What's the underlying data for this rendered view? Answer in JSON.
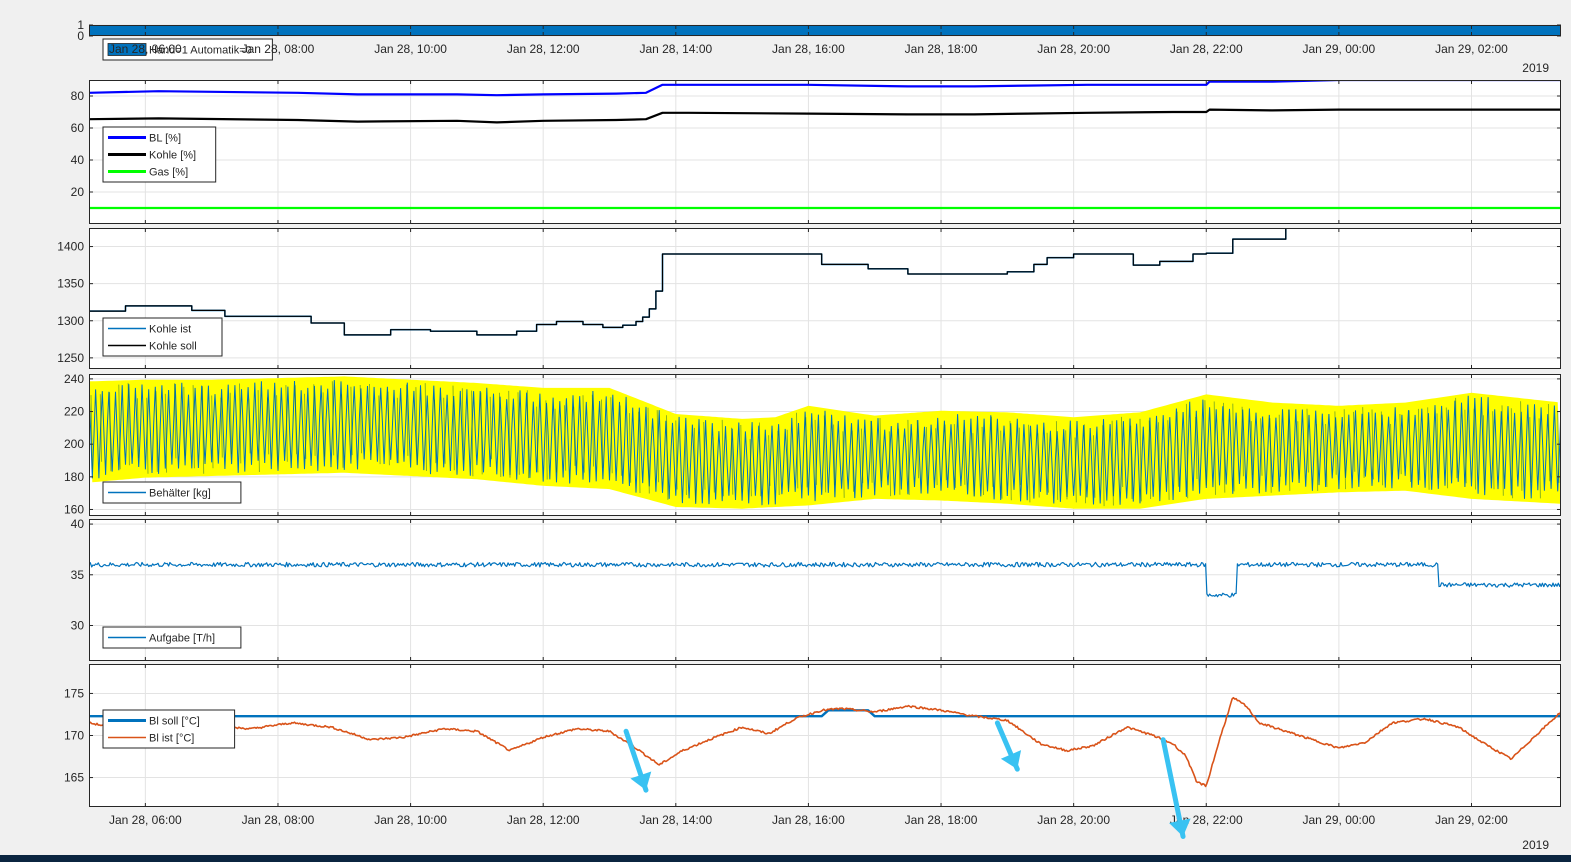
{
  "figure": {
    "background": "#f0f0f0",
    "year_label": "2019",
    "x_ticks": [
      "Jan 28, 06:00",
      "Jan 28, 08:00",
      "Jan 28, 10:00",
      "Jan 28, 12:00",
      "Jan 28, 14:00",
      "Jan 28, 16:00",
      "Jan 28, 18:00",
      "Jan 28, 20:00",
      "Jan 28, 22:00",
      "Jan 29, 00:00",
      "Jan 29, 02:00"
    ],
    "x_tick_hours": [
      6,
      8,
      10,
      12,
      14,
      16,
      18,
      20,
      22,
      24,
      26
    ],
    "x_range_hours": [
      5.15,
      27.35
    ],
    "arrow_color": "#39c2f2",
    "arrows": [
      {
        "name": "annotation-arrow-1",
        "from_hour": 13.25,
        "from_value": 170.5,
        "to_hour": 13.55,
        "to_value": 163.5
      },
      {
        "name": "annotation-arrow-2",
        "from_hour": 18.85,
        "from_value": 171.5,
        "to_hour": 19.15,
        "to_value": 166.0
      },
      {
        "name": "annotation-arrow-3",
        "from_hour": 21.35,
        "from_value": 169.5,
        "to_hour": 21.65,
        "to_value": 158.0
      }
    ]
  },
  "chart_data": [
    {
      "name": "panel-mode",
      "type": "bar",
      "yticks": [
        0,
        1
      ],
      "ylim": [
        0,
        1
      ],
      "legend": [
        {
          "label": "Hand=1 Automatik=0",
          "color": "#0072bd",
          "kind": "patch"
        }
      ],
      "series": [
        {
          "name": "Hand=1 Automatik=0",
          "color": "#0072bd",
          "x": [
            5.15,
            27.35
          ],
          "y": [
            1,
            1
          ]
        }
      ]
    },
    {
      "name": "panel-load",
      "type": "line",
      "yticks": [
        20,
        40,
        60,
        80
      ],
      "ylim": [
        0,
        90
      ],
      "legend": [
        {
          "label": "BL [%]",
          "color": "#0000ff"
        },
        {
          "label": "Kohle [%]",
          "color": "#000000"
        },
        {
          "label": "Gas [%]",
          "color": "#00ff00"
        }
      ],
      "series": [
        {
          "name": "BL [%]",
          "color": "#0000ff",
          "width": 2.2,
          "x": [
            5.15,
            6.2,
            8.3,
            9.2,
            10.7,
            11.3,
            12.0,
            13.1,
            13.55,
            13.8,
            14.2,
            16.0,
            17.5,
            18.5,
            19.3,
            20.2,
            21.5,
            22.0,
            22.05,
            23.0,
            24.0,
            27.35
          ],
          "y": [
            82,
            83,
            82,
            81,
            81,
            80.5,
            81,
            81.5,
            82,
            87,
            87,
            87,
            86,
            86,
            86.5,
            87,
            87,
            87,
            89,
            89,
            90,
            90
          ]
        },
        {
          "name": "Kohle [%]",
          "color": "#000000",
          "width": 2.2,
          "x": [
            5.15,
            6.2,
            8.3,
            9.2,
            10.7,
            11.3,
            12.0,
            13.1,
            13.55,
            13.8,
            14.2,
            16.0,
            17.5,
            18.5,
            19.3,
            20.2,
            21.5,
            22.0,
            22.05,
            23.0,
            24.0,
            27.35
          ],
          "y": [
            65.5,
            66,
            65,
            64,
            64.5,
            63.5,
            64.5,
            65,
            65.5,
            69.5,
            69.5,
            69,
            68.5,
            68.5,
            69,
            69.5,
            70,
            70,
            71.5,
            71,
            71.5,
            71.5
          ]
        },
        {
          "name": "Gas [%]",
          "color": "#00ff00",
          "width": 2.2,
          "x": [
            5.15,
            27.35
          ],
          "y": [
            10,
            10
          ]
        }
      ]
    },
    {
      "name": "panel-coal",
      "type": "line",
      "yticks": [
        1250,
        1300,
        1350,
        1400
      ],
      "ylim": [
        1235,
        1425
      ],
      "legend": [
        {
          "label": "Kohle ist",
          "color": "#0072bd"
        },
        {
          "label": "Kohle soll",
          "color": "#000000"
        }
      ],
      "series": [
        {
          "name": "Kohle ist",
          "color": "#0072bd",
          "width": 1.6,
          "step": true,
          "x": [
            5.15,
            5.7,
            6.7,
            7.2,
            8.5,
            9.0,
            9.7,
            10.3,
            11.0,
            11.6,
            11.9,
            12.2,
            12.6,
            12.9,
            13.2,
            13.4,
            13.5,
            13.6,
            13.7,
            13.8,
            15.2,
            16.2,
            16.9,
            17.5,
            18.4,
            19.0,
            19.4,
            19.6,
            20.0,
            20.5,
            20.9,
            21.3,
            21.8,
            22.0,
            22.4,
            23.2,
            23.6
          ],
          "y": [
            1313,
            1320,
            1314,
            1306,
            1297,
            1281,
            1288,
            1286,
            1281,
            1286,
            1295,
            1299,
            1295,
            1291,
            1294,
            1299,
            1305,
            1316,
            1340,
            1390,
            1390,
            1376,
            1370,
            1363,
            1363,
            1366,
            1376,
            1385,
            1390,
            1390,
            1375,
            1380,
            1390,
            1391,
            1410,
            1425,
            1425
          ]
        },
        {
          "name": "Kohle soll",
          "color": "#000000",
          "width": 1.2,
          "step": true,
          "x": [
            5.15,
            5.7,
            6.7,
            7.2,
            8.5,
            9.0,
            9.7,
            10.3,
            11.0,
            11.6,
            11.9,
            12.2,
            12.6,
            12.9,
            13.2,
            13.4,
            13.5,
            13.6,
            13.7,
            13.8,
            15.2,
            16.2,
            16.9,
            17.5,
            18.4,
            19.0,
            19.4,
            19.6,
            20.0,
            20.5,
            20.9,
            21.3,
            21.8,
            22.0,
            22.4,
            23.2,
            23.6
          ],
          "y": [
            1313,
            1320,
            1314,
            1306,
            1297,
            1281,
            1288,
            1286,
            1281,
            1286,
            1295,
            1299,
            1295,
            1291,
            1294,
            1299,
            1305,
            1316,
            1340,
            1390,
            1390,
            1376,
            1370,
            1363,
            1363,
            1366,
            1376,
            1385,
            1390,
            1390,
            1375,
            1380,
            1390,
            1391,
            1410,
            1425,
            1425
          ]
        }
      ]
    },
    {
      "name": "panel-bin",
      "type": "line",
      "yticks": [
        160,
        180,
        200,
        220,
        240
      ],
      "ylim": [
        156,
        243
      ],
      "legend": [
        {
          "label": "Behälter [kg]",
          "color": "#0072bd"
        }
      ],
      "series": [
        {
          "name": "Behälter [kg]",
          "color": "#0072bd",
          "width": 1,
          "oscillation": true,
          "period_hours": 0.1,
          "x": [
            5.15,
            6.0,
            7.0,
            8.0,
            9.0,
            10.0,
            11.0,
            12.0,
            13.0,
            14.0,
            15.0,
            15.5,
            16.0,
            17.0,
            18.0,
            19.0,
            20.0,
            21.0,
            22.0,
            23.0,
            24.0,
            25.0,
            26.0,
            27.35
          ],
          "upper": [
            237,
            238,
            238,
            239,
            240,
            238,
            236,
            233,
            233,
            217,
            214,
            215,
            222,
            216,
            219,
            218,
            215,
            218,
            229,
            224,
            222,
            224,
            230,
            224
          ],
          "lower": [
            178,
            181,
            182,
            183,
            184,
            182,
            180,
            176,
            174,
            163,
            162,
            163,
            164,
            168,
            167,
            165,
            162,
            162,
            168,
            170,
            172,
            173,
            168,
            165
          ]
        }
      ],
      "envelope": {
        "color": "#ffff00",
        "x": [
          5.15,
          6.0,
          7.0,
          8.0,
          9.0,
          10.0,
          11.0,
          12.0,
          13.0,
          14.0,
          15.0,
          15.5,
          16.0,
          17.0,
          18.0,
          19.0,
          20.0,
          21.0,
          22.0,
          23.0,
          24.0,
          25.0,
          26.0,
          27.35
        ],
        "upper": [
          237,
          238,
          238,
          239,
          240,
          238,
          236,
          233,
          233,
          217,
          214,
          215,
          222,
          216,
          219,
          218,
          215,
          218,
          229,
          224,
          222,
          224,
          230,
          224
        ],
        "lower": [
          178,
          181,
          182,
          183,
          184,
          182,
          180,
          176,
          174,
          163,
          162,
          163,
          164,
          168,
          167,
          165,
          162,
          162,
          168,
          170,
          172,
          173,
          168,
          165
        ]
      }
    },
    {
      "name": "panel-feed",
      "type": "line",
      "yticks": [
        30,
        35,
        40
      ],
      "ylim": [
        26.5,
        40.5
      ],
      "legend": [
        {
          "label": "Aufgabe [T/h]",
          "color": "#0072bd"
        }
      ],
      "series": [
        {
          "name": "Aufgabe [T/h]",
          "color": "#0072bd",
          "width": 1.2,
          "noise": 0.22,
          "step": true,
          "x": [
            5.15,
            21.9,
            22.0,
            22.3,
            22.45,
            25.4,
            25.5,
            27.35
          ],
          "y": [
            36,
            36,
            33,
            33,
            36,
            36,
            34,
            34
          ]
        }
      ]
    },
    {
      "name": "panel-temperature",
      "type": "line",
      "yticks": [
        165,
        170,
        175
      ],
      "ylim": [
        161.5,
        178.5
      ],
      "legend": [
        {
          "label": "Bl soll [°C]",
          "color": "#0072bd"
        },
        {
          "label": "Bl ist [°C]",
          "color": "#d95319"
        }
      ],
      "series": [
        {
          "name": "Bl soll [°C]",
          "color": "#0072bd",
          "width": 2.4,
          "x": [
            5.15,
            15.4,
            15.5,
            16.2,
            16.3,
            16.9,
            17.0,
            27.35
          ],
          "y": [
            172.3,
            172.3,
            172.3,
            172.3,
            173.0,
            173.0,
            172.3,
            172.3
          ]
        },
        {
          "name": "Bl ist [°C]",
          "color": "#d95319",
          "width": 1.6,
          "noise": 0.12,
          "x": [
            5.15,
            5.5,
            6.2,
            6.8,
            7.2,
            7.6,
            8.2,
            8.8,
            9.4,
            9.9,
            10.5,
            11.0,
            11.5,
            12.0,
            12.5,
            13.0,
            13.4,
            13.75,
            14.1,
            14.5,
            15.0,
            15.4,
            15.8,
            16.2,
            16.5,
            17.0,
            17.5,
            18.0,
            18.5,
            19.0,
            19.5,
            19.9,
            20.3,
            20.8,
            21.2,
            21.5,
            21.7,
            21.85,
            22.0,
            22.2,
            22.4,
            22.6,
            22.8,
            23.2,
            23.6,
            24.0,
            24.4,
            24.8,
            25.3,
            25.8,
            26.2,
            26.6,
            26.9,
            27.35
          ],
          "y": [
            171.5,
            171.0,
            171.5,
            170.5,
            171.0,
            170.8,
            171.5,
            171.0,
            169.5,
            169.8,
            170.8,
            170.5,
            168.2,
            169.8,
            170.8,
            170.5,
            168.5,
            166.5,
            168.2,
            169.5,
            171.0,
            170.2,
            172.0,
            173.0,
            173.2,
            172.8,
            173.5,
            173.0,
            172.3,
            171.8,
            169.0,
            168.2,
            168.8,
            171.0,
            170.0,
            169.0,
            167.5,
            164.5,
            164.0,
            169.5,
            174.5,
            173.5,
            171.5,
            170.5,
            169.5,
            168.5,
            169.2,
            171.5,
            172.0,
            171.0,
            169.0,
            167.2,
            169.5,
            172.8
          ]
        }
      ]
    }
  ]
}
